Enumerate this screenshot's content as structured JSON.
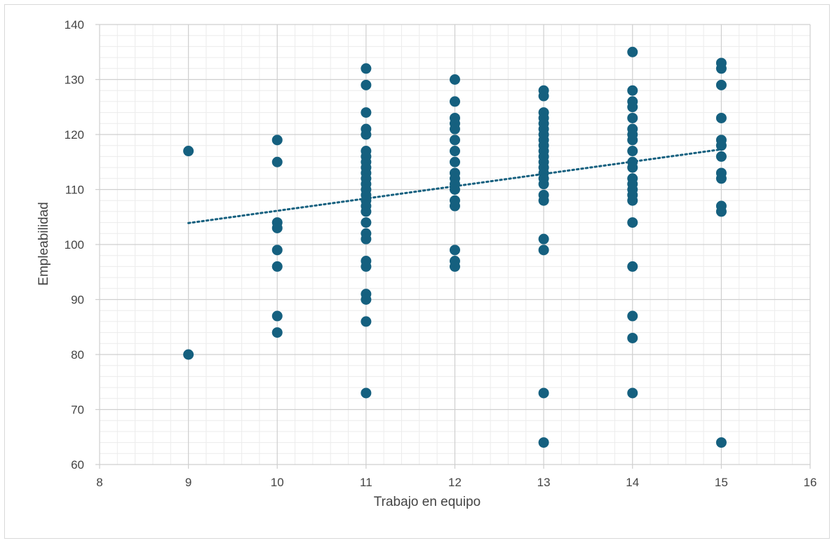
{
  "colors": {
    "marker": "#15607f",
    "trend": "#15607f",
    "grid_major": "#cfcfcf",
    "grid_minor": "#ececec"
  },
  "chart_data": {
    "type": "scatter",
    "xlabel": "Trabajo en equipo",
    "ylabel": "Empleabilidad",
    "xlim": [
      8,
      16
    ],
    "ylim": [
      60,
      140
    ],
    "x_major_step": 1,
    "y_major_step": 10,
    "x_ticks": [
      "8",
      "9",
      "10",
      "11",
      "12",
      "13",
      "14",
      "15",
      "16"
    ],
    "y_ticks": [
      "60",
      "70",
      "80",
      "90",
      "100",
      "110",
      "120",
      "130",
      "140"
    ],
    "grid": true,
    "legend": "none",
    "trendline": {
      "type": "linear",
      "style": "dotted",
      "x": [
        9,
        15
      ],
      "y": [
        103.9,
        117.3
      ]
    },
    "series": [
      {
        "points": [
          [
            9,
            117
          ],
          [
            9,
            80
          ],
          [
            10,
            119
          ],
          [
            10,
            115
          ],
          [
            10,
            104
          ],
          [
            10,
            103
          ],
          [
            10,
            99
          ],
          [
            10,
            96
          ],
          [
            10,
            87
          ],
          [
            10,
            84
          ],
          [
            11,
            132
          ],
          [
            11,
            129
          ],
          [
            11,
            124
          ],
          [
            11,
            121
          ],
          [
            11,
            120
          ],
          [
            11,
            117
          ],
          [
            11,
            116
          ],
          [
            11,
            115
          ],
          [
            11,
            114
          ],
          [
            11,
            113
          ],
          [
            11,
            112
          ],
          [
            11,
            111
          ],
          [
            11,
            110
          ],
          [
            11,
            109
          ],
          [
            11,
            108
          ],
          [
            11,
            107
          ],
          [
            11,
            106
          ],
          [
            11,
            104
          ],
          [
            11,
            102
          ],
          [
            11,
            101
          ],
          [
            11,
            97
          ],
          [
            11,
            96
          ],
          [
            11,
            91
          ],
          [
            11,
            90
          ],
          [
            11,
            86
          ],
          [
            11,
            73
          ],
          [
            12,
            130
          ],
          [
            12,
            126
          ],
          [
            12,
            123
          ],
          [
            12,
            122
          ],
          [
            12,
            121
          ],
          [
            12,
            119
          ],
          [
            12,
            117
          ],
          [
            12,
            115
          ],
          [
            12,
            113
          ],
          [
            12,
            112
          ],
          [
            12,
            111
          ],
          [
            12,
            110
          ],
          [
            12,
            108
          ],
          [
            12,
            107
          ],
          [
            12,
            99
          ],
          [
            12,
            97
          ],
          [
            12,
            96
          ],
          [
            13,
            128
          ],
          [
            13,
            127
          ],
          [
            13,
            124
          ],
          [
            13,
            123
          ],
          [
            13,
            122
          ],
          [
            13,
            121
          ],
          [
            13,
            120
          ],
          [
            13,
            119
          ],
          [
            13,
            118
          ],
          [
            13,
            117
          ],
          [
            13,
            116
          ],
          [
            13,
            115
          ],
          [
            13,
            114
          ],
          [
            13,
            113
          ],
          [
            13,
            112
          ],
          [
            13,
            111
          ],
          [
            13,
            109
          ],
          [
            13,
            108
          ],
          [
            13,
            101
          ],
          [
            13,
            99
          ],
          [
            13,
            73
          ],
          [
            13,
            64
          ],
          [
            14,
            135
          ],
          [
            14,
            128
          ],
          [
            14,
            126
          ],
          [
            14,
            125
          ],
          [
            14,
            123
          ],
          [
            14,
            121
          ],
          [
            14,
            120
          ],
          [
            14,
            119
          ],
          [
            14,
            117
          ],
          [
            14,
            115
          ],
          [
            14,
            114
          ],
          [
            14,
            112
          ],
          [
            14,
            111
          ],
          [
            14,
            110
          ],
          [
            14,
            109
          ],
          [
            14,
            108
          ],
          [
            14,
            104
          ],
          [
            14,
            96
          ],
          [
            14,
            87
          ],
          [
            14,
            83
          ],
          [
            14,
            73
          ],
          [
            15,
            133
          ],
          [
            15,
            132
          ],
          [
            15,
            129
          ],
          [
            15,
            123
          ],
          [
            15,
            119
          ],
          [
            15,
            118
          ],
          [
            15,
            116
          ],
          [
            15,
            113
          ],
          [
            15,
            112
          ],
          [
            15,
            107
          ],
          [
            15,
            106
          ],
          [
            15,
            64
          ]
        ]
      }
    ]
  }
}
